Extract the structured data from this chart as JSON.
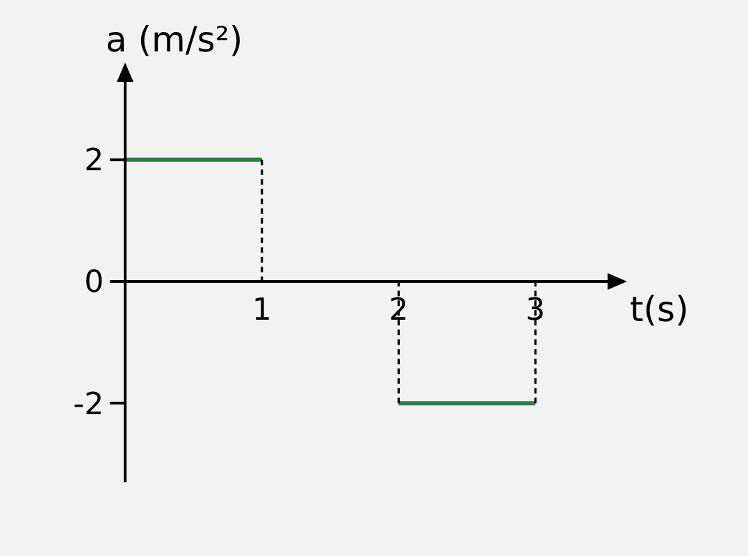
{
  "chart_data": {
    "type": "line",
    "xlabel": "t(s)",
    "ylabel": "a (m/s²)",
    "xlim": [
      0,
      3.65
    ],
    "ylim": [
      -3.3,
      3.55
    ],
    "xticks": [
      1,
      2,
      3
    ],
    "yticks": [
      -2,
      0,
      2
    ],
    "line_style": "solid",
    "series": [
      {
        "x": [
          0,
          1
        ],
        "values": [
          2,
          2
        ],
        "color": "#2e7d45"
      },
      {
        "x": [
          2,
          3
        ],
        "values": [
          -2,
          -2
        ],
        "color": "#2e7d45"
      },
      {
        "x": [
          1,
          1
        ],
        "values": [
          2,
          0
        ],
        "color": "#000000",
        "line_style": "dashed"
      },
      {
        "x": [
          2,
          2
        ],
        "values": [
          -2,
          0
        ],
        "color": "#000000",
        "line_style": "dashed"
      },
      {
        "x": [
          3,
          3
        ],
        "values": [
          -2,
          0
        ],
        "color": "#000000",
        "line_style": "dashed"
      }
    ]
  }
}
